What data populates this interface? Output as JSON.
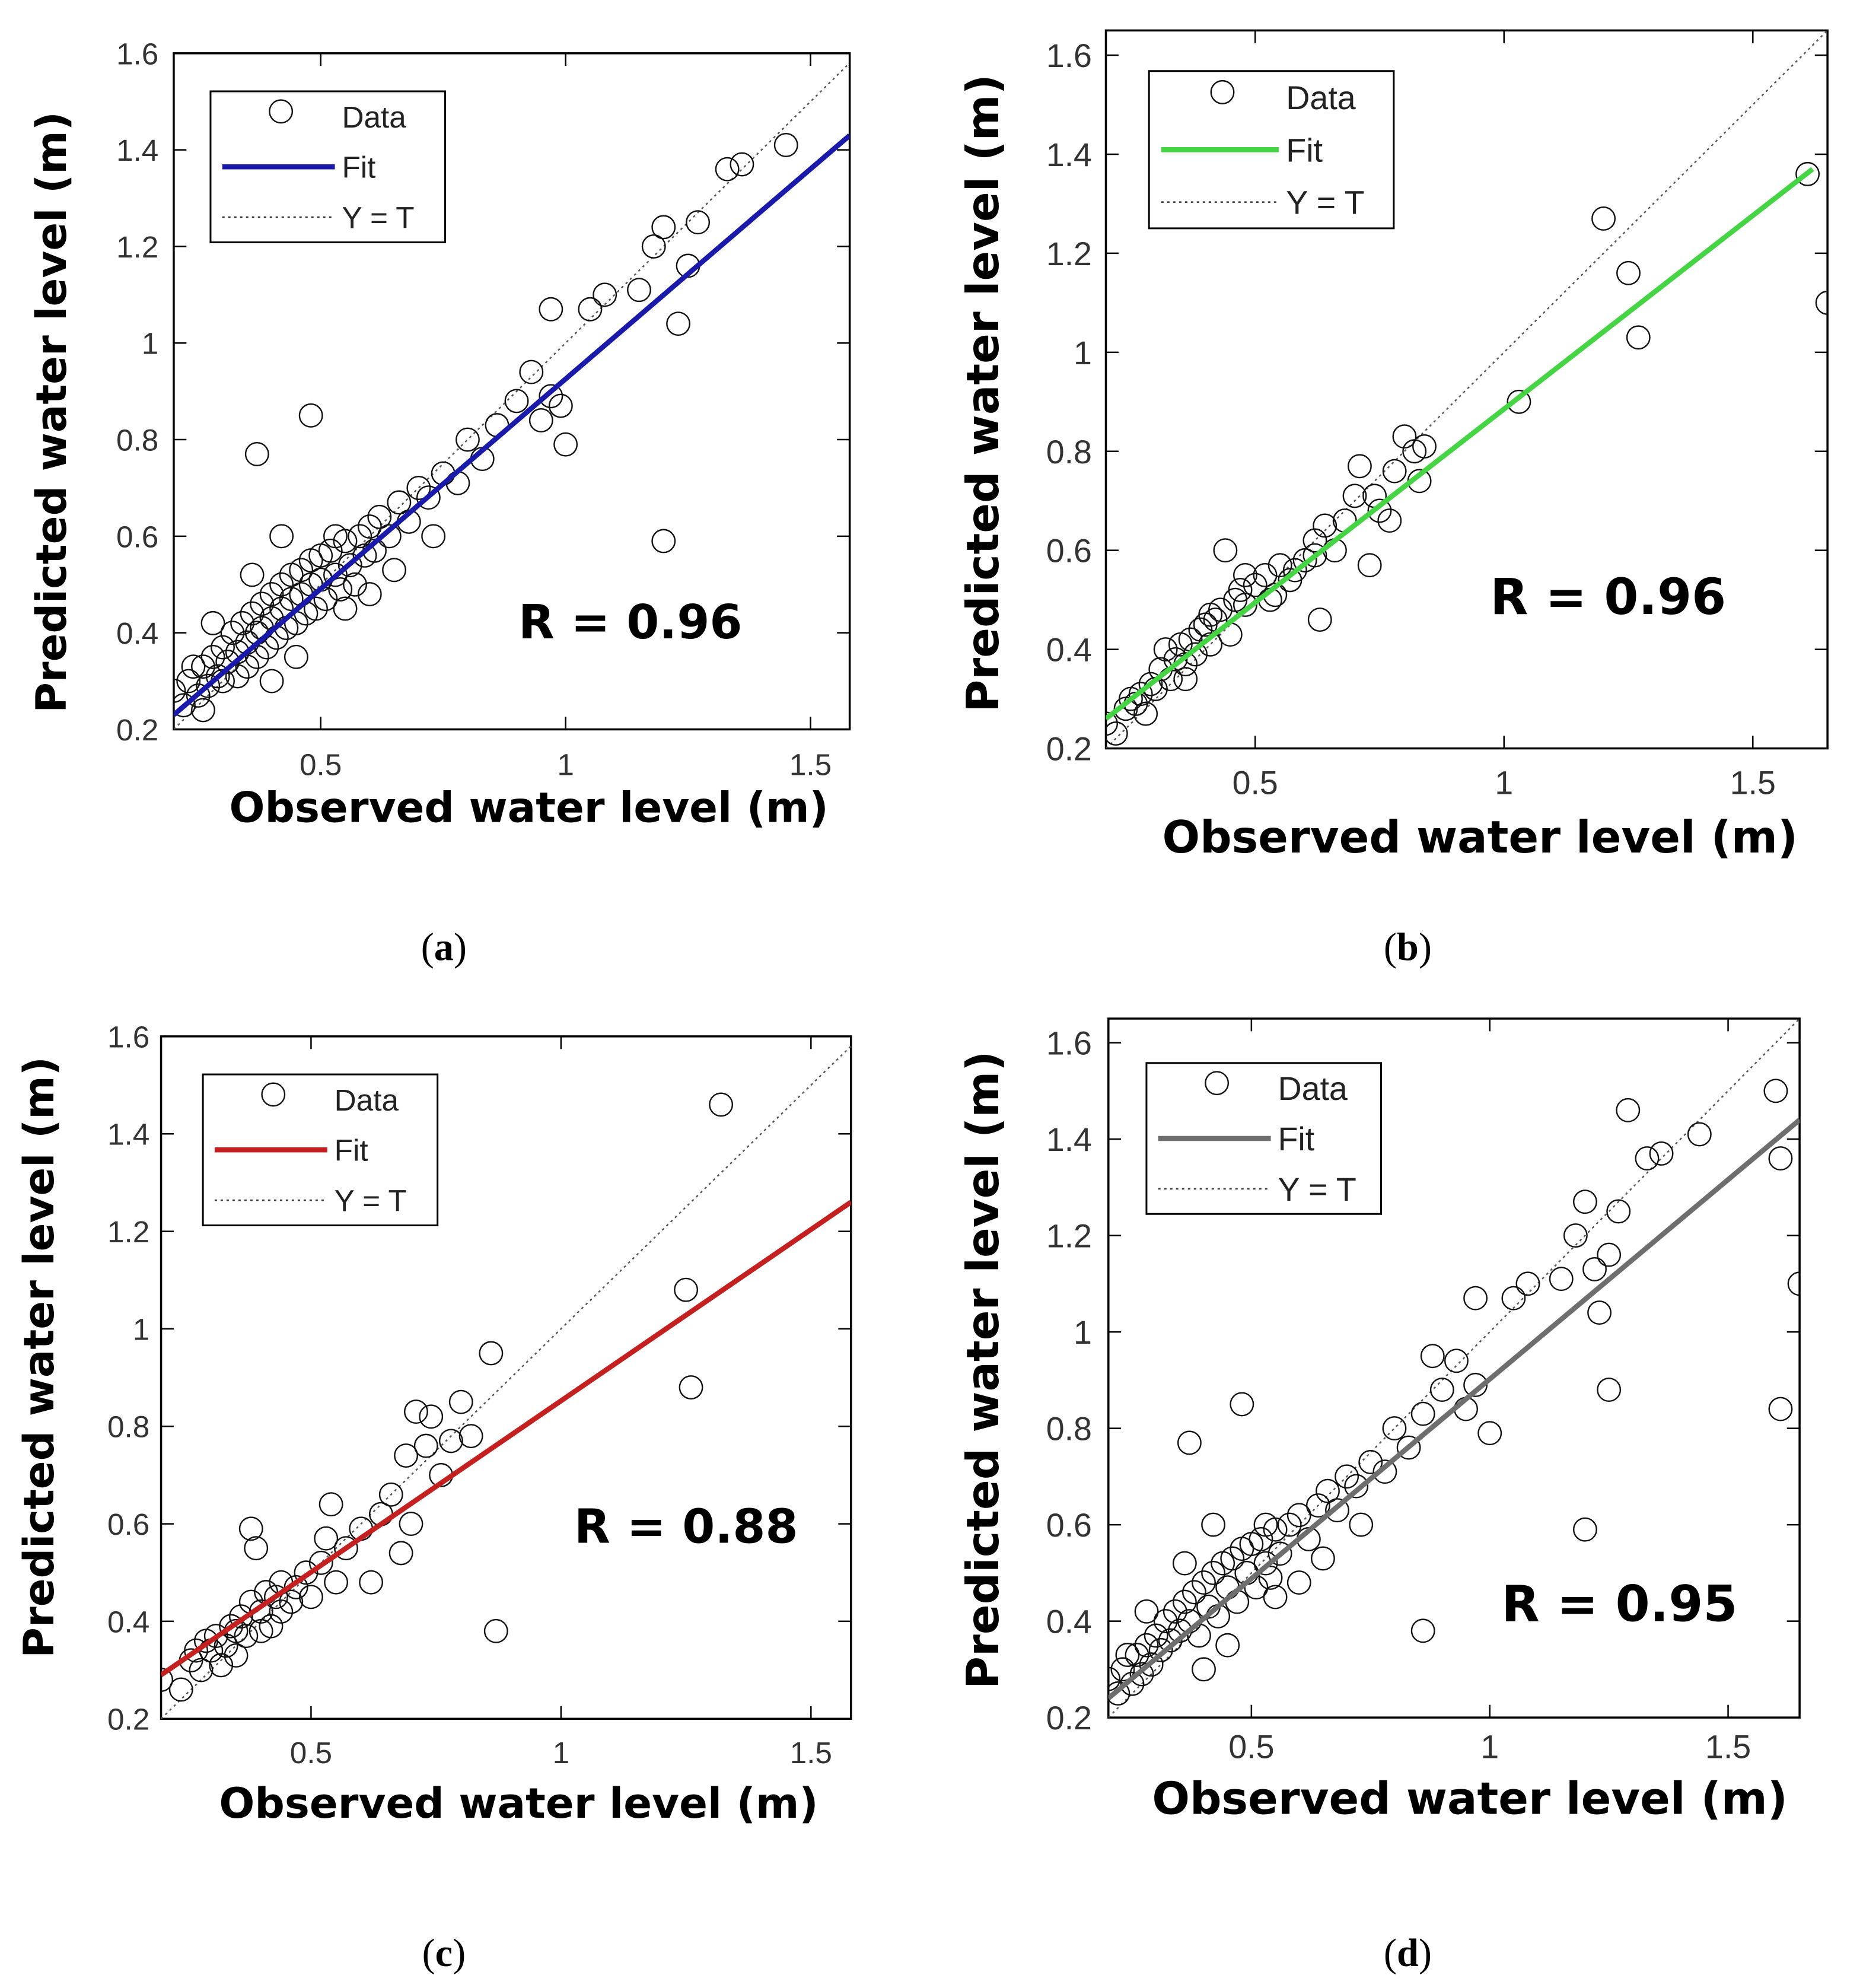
{
  "chart_data": [
    {
      "panel": "a",
      "type": "scatter",
      "caption_letter": "a",
      "xlabel": "Observed water level (m)",
      "ylabel": "Predicted water level (m)",
      "xlim": [
        0.2,
        1.58
      ],
      "ylim": [
        0.2,
        1.6
      ],
      "xticks": [
        0.5,
        1,
        1.5
      ],
      "xtick_labels": [
        "0.5",
        "1",
        "1.5"
      ],
      "yticks": [
        0.2,
        0.4,
        0.6,
        0.8,
        1.0,
        1.2,
        1.4,
        1.6
      ],
      "ytick_labels": [
        "0.2",
        "0.4",
        "0.6",
        "0.8",
        "1",
        "1.2",
        "1.4",
        "1.6"
      ],
      "legend": [
        "Data",
        "Fit",
        "Y = T"
      ],
      "fit_color": "#1a1aaa",
      "fit_line": [
        [
          0.2,
          0.23
        ],
        [
          1.58,
          1.43
        ]
      ],
      "r_label": "R = 0.96",
      "points": [
        [
          0.2,
          0.28
        ],
        [
          0.22,
          0.25
        ],
        [
          0.23,
          0.3
        ],
        [
          0.25,
          0.27
        ],
        [
          0.26,
          0.33
        ],
        [
          0.27,
          0.29
        ],
        [
          0.28,
          0.35
        ],
        [
          0.29,
          0.31
        ],
        [
          0.3,
          0.37
        ],
        [
          0.3,
          0.3
        ],
        [
          0.31,
          0.34
        ],
        [
          0.32,
          0.4
        ],
        [
          0.33,
          0.36
        ],
        [
          0.33,
          0.31
        ],
        [
          0.34,
          0.42
        ],
        [
          0.35,
          0.38
        ],
        [
          0.35,
          0.33
        ],
        [
          0.36,
          0.44
        ],
        [
          0.37,
          0.4
        ],
        [
          0.37,
          0.35
        ],
        [
          0.38,
          0.46
        ],
        [
          0.38,
          0.41
        ],
        [
          0.39,
          0.37
        ],
        [
          0.4,
          0.48
        ],
        [
          0.4,
          0.43
        ],
        [
          0.41,
          0.39
        ],
        [
          0.42,
          0.5
        ],
        [
          0.42,
          0.45
        ],
        [
          0.43,
          0.41
        ],
        [
          0.44,
          0.52
        ],
        [
          0.44,
          0.47
        ],
        [
          0.45,
          0.42
        ],
        [
          0.46,
          0.53
        ],
        [
          0.46,
          0.48
        ],
        [
          0.47,
          0.44
        ],
        [
          0.48,
          0.55
        ],
        [
          0.48,
          0.5
        ],
        [
          0.49,
          0.45
        ],
        [
          0.5,
          0.56
        ],
        [
          0.5,
          0.51
        ],
        [
          0.51,
          0.47
        ],
        [
          0.52,
          0.57
        ],
        [
          0.53,
          0.52
        ],
        [
          0.54,
          0.49
        ],
        [
          0.55,
          0.59
        ],
        [
          0.56,
          0.54
        ],
        [
          0.57,
          0.5
        ],
        [
          0.58,
          0.6
        ],
        [
          0.59,
          0.56
        ],
        [
          0.6,
          0.62
        ],
        [
          0.61,
          0.57
        ],
        [
          0.62,
          0.64
        ],
        [
          0.64,
          0.6
        ],
        [
          0.65,
          0.53
        ],
        [
          0.66,
          0.67
        ],
        [
          0.68,
          0.63
        ],
        [
          0.7,
          0.7
        ],
        [
          0.72,
          0.68
        ],
        [
          0.75,
          0.73
        ],
        [
          0.78,
          0.71
        ],
        [
          0.8,
          0.8
        ],
        [
          0.83,
          0.76
        ],
        [
          0.86,
          0.83
        ],
        [
          0.9,
          0.88
        ],
        [
          0.93,
          0.94
        ],
        [
          0.95,
          0.84
        ],
        [
          0.97,
          0.89
        ],
        [
          0.99,
          0.87
        ],
        [
          1.0,
          0.79
        ],
        [
          0.97,
          1.07
        ],
        [
          1.05,
          1.07
        ],
        [
          1.08,
          1.1
        ],
        [
          1.15,
          1.11
        ],
        [
          1.18,
          1.2
        ],
        [
          1.2,
          1.24
        ],
        [
          1.23,
          1.04
        ],
        [
          1.25,
          1.16
        ],
        [
          1.27,
          1.25
        ],
        [
          1.33,
          1.36
        ],
        [
          1.36,
          1.37
        ],
        [
          1.45,
          1.41
        ],
        [
          1.2,
          0.59
        ],
        [
          0.37,
          0.77
        ],
        [
          0.48,
          0.85
        ],
        [
          0.45,
          0.35
        ],
        [
          0.42,
          0.6
        ],
        [
          0.28,
          0.42
        ],
        [
          0.24,
          0.33
        ],
        [
          0.26,
          0.24
        ],
        [
          0.36,
          0.52
        ],
        [
          0.53,
          0.6
        ],
        [
          0.6,
          0.48
        ],
        [
          0.4,
          0.3
        ],
        [
          0.55,
          0.45
        ],
        [
          0.73,
          0.6
        ]
      ]
    },
    {
      "panel": "b",
      "type": "scatter",
      "caption_letter": "b",
      "xlabel": "Observed water level (m)",
      "ylabel": "Predicted water level (m)",
      "xlim": [
        0.2,
        1.65
      ],
      "ylim": [
        0.2,
        1.65
      ],
      "xticks": [
        0.5,
        1,
        1.5
      ],
      "xtick_labels": [
        "0.5",
        "1",
        "1.5"
      ],
      "yticks": [
        0.2,
        0.4,
        0.6,
        0.8,
        1.0,
        1.2,
        1.4,
        1.6
      ],
      "ytick_labels": [
        "0.2",
        "0.4",
        "0.6",
        "0.8",
        "1",
        "1.2",
        "1.4",
        "1.6"
      ],
      "legend": [
        "Data",
        "Fit",
        "Y = T"
      ],
      "fit_color": "#44d444",
      "fit_line": [
        [
          0.2,
          0.26
        ],
        [
          1.62,
          1.37
        ]
      ],
      "r_label": "R = 0.96",
      "points": [
        [
          0.2,
          0.25
        ],
        [
          0.22,
          0.23
        ],
        [
          0.24,
          0.28
        ],
        [
          0.25,
          0.3
        ],
        [
          0.27,
          0.31
        ],
        [
          0.28,
          0.27
        ],
        [
          0.3,
          0.32
        ],
        [
          0.31,
          0.36
        ],
        [
          0.32,
          0.4
        ],
        [
          0.33,
          0.34
        ],
        [
          0.34,
          0.38
        ],
        [
          0.35,
          0.41
        ],
        [
          0.36,
          0.37
        ],
        [
          0.37,
          0.42
        ],
        [
          0.38,
          0.39
        ],
        [
          0.39,
          0.44
        ],
        [
          0.4,
          0.45
        ],
        [
          0.41,
          0.41
        ],
        [
          0.42,
          0.46
        ],
        [
          0.43,
          0.48
        ],
        [
          0.44,
          0.6
        ],
        [
          0.45,
          0.43
        ],
        [
          0.46,
          0.5
        ],
        [
          0.47,
          0.52
        ],
        [
          0.48,
          0.49
        ],
        [
          0.5,
          0.53
        ],
        [
          0.52,
          0.55
        ],
        [
          0.54,
          0.51
        ],
        [
          0.55,
          0.57
        ],
        [
          0.57,
          0.54
        ],
        [
          0.58,
          0.56
        ],
        [
          0.6,
          0.58
        ],
        [
          0.62,
          0.62
        ],
        [
          0.63,
          0.46
        ],
        [
          0.64,
          0.65
        ],
        [
          0.66,
          0.6
        ],
        [
          0.68,
          0.66
        ],
        [
          0.7,
          0.71
        ],
        [
          0.71,
          0.77
        ],
        [
          0.73,
          0.57
        ],
        [
          0.75,
          0.68
        ],
        [
          0.77,
          0.66
        ],
        [
          0.78,
          0.76
        ],
        [
          0.8,
          0.83
        ],
        [
          0.82,
          0.8
        ],
        [
          0.83,
          0.74
        ],
        [
          0.84,
          0.81
        ],
        [
          1.03,
          0.9
        ],
        [
          1.2,
          1.27
        ],
        [
          1.25,
          1.16
        ],
        [
          1.27,
          1.03
        ],
        [
          1.61,
          1.36
        ],
        [
          1.65,
          1.1
        ],
        [
          0.36,
          0.34
        ],
        [
          0.29,
          0.33
        ],
        [
          0.53,
          0.5
        ],
        [
          0.41,
          0.47
        ],
        [
          0.62,
          0.59
        ],
        [
          0.26,
          0.29
        ],
        [
          0.48,
          0.55
        ],
        [
          0.74,
          0.71
        ]
      ]
    },
    {
      "panel": "c",
      "type": "scatter",
      "caption_letter": "c",
      "xlabel": "Observed water level (m)",
      "ylabel": "Predicted water level (m)",
      "xlim": [
        0.2,
        1.58
      ],
      "ylim": [
        0.2,
        1.6
      ],
      "xticks": [
        0.5,
        1,
        1.5
      ],
      "xtick_labels": [
        "0.5",
        "1",
        "1.5"
      ],
      "yticks": [
        0.2,
        0.4,
        0.6,
        0.8,
        1.0,
        1.2,
        1.4,
        1.6
      ],
      "ytick_labels": [
        "0.2",
        "0.4",
        "0.6",
        "0.8",
        "1",
        "1.2",
        "1.4",
        "1.6"
      ],
      "legend": [
        "Data",
        "Fit",
        "Y = T"
      ],
      "fit_color": "#c42020",
      "fit_line": [
        [
          0.2,
          0.29
        ],
        [
          1.58,
          1.26
        ]
      ],
      "r_label": "R = 0.88",
      "points": [
        [
          0.2,
          0.28
        ],
        [
          0.24,
          0.26
        ],
        [
          0.26,
          0.32
        ],
        [
          0.28,
          0.3
        ],
        [
          0.3,
          0.34
        ],
        [
          0.31,
          0.37
        ],
        [
          0.32,
          0.31
        ],
        [
          0.33,
          0.35
        ],
        [
          0.34,
          0.39
        ],
        [
          0.35,
          0.33
        ],
        [
          0.36,
          0.41
        ],
        [
          0.37,
          0.37
        ],
        [
          0.38,
          0.44
        ],
        [
          0.38,
          0.59
        ],
        [
          0.39,
          0.55
        ],
        [
          0.4,
          0.42
        ],
        [
          0.41,
          0.46
        ],
        [
          0.42,
          0.39
        ],
        [
          0.43,
          0.45
        ],
        [
          0.44,
          0.48
        ],
        [
          0.46,
          0.44
        ],
        [
          0.47,
          0.47
        ],
        [
          0.49,
          0.5
        ],
        [
          0.5,
          0.45
        ],
        [
          0.52,
          0.52
        ],
        [
          0.53,
          0.57
        ],
        [
          0.54,
          0.64
        ],
        [
          0.55,
          0.48
        ],
        [
          0.57,
          0.55
        ],
        [
          0.6,
          0.59
        ],
        [
          0.62,
          0.48
        ],
        [
          0.64,
          0.62
        ],
        [
          0.66,
          0.66
        ],
        [
          0.68,
          0.54
        ],
        [
          0.69,
          0.74
        ],
        [
          0.7,
          0.6
        ],
        [
          0.71,
          0.83
        ],
        [
          0.73,
          0.76
        ],
        [
          0.74,
          0.82
        ],
        [
          0.76,
          0.7
        ],
        [
          0.78,
          0.77
        ],
        [
          0.8,
          0.85
        ],
        [
          0.82,
          0.78
        ],
        [
          0.86,
          0.95
        ],
        [
          0.87,
          0.38
        ],
        [
          1.25,
          1.08
        ],
        [
          1.26,
          0.88
        ],
        [
          1.32,
          1.46
        ],
        [
          0.29,
          0.36
        ],
        [
          0.35,
          0.38
        ],
        [
          0.44,
          0.42
        ],
        [
          0.27,
          0.34
        ],
        [
          0.4,
          0.38
        ]
      ]
    },
    {
      "panel": "d",
      "type": "scatter",
      "caption_letter": "d",
      "xlabel": "Observed water level (m)",
      "ylabel": "Predicted water level (m)",
      "xlim": [
        0.2,
        1.65
      ],
      "ylim": [
        0.2,
        1.65
      ],
      "xticks": [
        0.5,
        1,
        1.5
      ],
      "xtick_labels": [
        "0.5",
        "1",
        "1.5"
      ],
      "yticks": [
        0.2,
        0.4,
        0.6,
        0.8,
        1.0,
        1.2,
        1.4,
        1.6
      ],
      "ytick_labels": [
        "0.2",
        "0.4",
        "0.6",
        "0.8",
        "1",
        "1.2",
        "1.4",
        "1.6"
      ],
      "legend": [
        "Data",
        "Fit",
        "Y = T"
      ],
      "fit_color": "#6e6e6e",
      "fit_line": [
        [
          0.2,
          0.24
        ],
        [
          1.65,
          1.44
        ]
      ],
      "r_label": "R = 0.95",
      "points": [
        [
          0.2,
          0.28
        ],
        [
          0.22,
          0.25
        ],
        [
          0.23,
          0.3
        ],
        [
          0.25,
          0.27
        ],
        [
          0.26,
          0.33
        ],
        [
          0.27,
          0.29
        ],
        [
          0.28,
          0.35
        ],
        [
          0.29,
          0.31
        ],
        [
          0.3,
          0.37
        ],
        [
          0.31,
          0.34
        ],
        [
          0.32,
          0.4
        ],
        [
          0.33,
          0.36
        ],
        [
          0.34,
          0.42
        ],
        [
          0.35,
          0.38
        ],
        [
          0.36,
          0.44
        ],
        [
          0.37,
          0.4
        ],
        [
          0.38,
          0.46
        ],
        [
          0.39,
          0.37
        ],
        [
          0.4,
          0.48
        ],
        [
          0.41,
          0.43
        ],
        [
          0.42,
          0.5
        ],
        [
          0.43,
          0.41
        ],
        [
          0.44,
          0.52
        ],
        [
          0.45,
          0.47
        ],
        [
          0.46,
          0.53
        ],
        [
          0.47,
          0.44
        ],
        [
          0.48,
          0.55
        ],
        [
          0.49,
          0.5
        ],
        [
          0.5,
          0.56
        ],
        [
          0.51,
          0.47
        ],
        [
          0.52,
          0.57
        ],
        [
          0.53,
          0.52
        ],
        [
          0.54,
          0.49
        ],
        [
          0.55,
          0.59
        ],
        [
          0.56,
          0.54
        ],
        [
          0.58,
          0.6
        ],
        [
          0.6,
          0.62
        ],
        [
          0.62,
          0.57
        ],
        [
          0.64,
          0.64
        ],
        [
          0.65,
          0.53
        ],
        [
          0.66,
          0.67
        ],
        [
          0.68,
          0.63
        ],
        [
          0.7,
          0.7
        ],
        [
          0.72,
          0.68
        ],
        [
          0.75,
          0.73
        ],
        [
          0.78,
          0.71
        ],
        [
          0.8,
          0.8
        ],
        [
          0.83,
          0.76
        ],
        [
          0.86,
          0.83
        ],
        [
          0.88,
          0.95
        ],
        [
          0.9,
          0.88
        ],
        [
          0.93,
          0.94
        ],
        [
          0.95,
          0.84
        ],
        [
          0.97,
          0.89
        ],
        [
          1.0,
          0.79
        ],
        [
          0.97,
          1.07
        ],
        [
          1.05,
          1.07
        ],
        [
          1.08,
          1.1
        ],
        [
          1.15,
          1.11
        ],
        [
          1.18,
          1.2
        ],
        [
          1.2,
          1.27
        ],
        [
          1.22,
          1.13
        ],
        [
          1.23,
          1.04
        ],
        [
          1.25,
          1.16
        ],
        [
          1.27,
          1.25
        ],
        [
          1.29,
          1.46
        ],
        [
          1.33,
          1.36
        ],
        [
          1.36,
          1.37
        ],
        [
          1.44,
          1.41
        ],
        [
          1.6,
          1.5
        ],
        [
          1.61,
          1.36
        ],
        [
          1.61,
          0.84
        ],
        [
          1.65,
          1.1
        ],
        [
          1.25,
          0.88
        ],
        [
          1.2,
          0.59
        ],
        [
          0.86,
          0.38
        ],
        [
          0.37,
          0.77
        ],
        [
          0.48,
          0.85
        ],
        [
          0.45,
          0.35
        ],
        [
          0.42,
          0.6
        ],
        [
          0.28,
          0.42
        ],
        [
          0.24,
          0.33
        ],
        [
          0.36,
          0.52
        ],
        [
          0.53,
          0.6
        ],
        [
          0.6,
          0.48
        ],
        [
          0.4,
          0.3
        ],
        [
          0.55,
          0.45
        ],
        [
          0.73,
          0.6
        ]
      ]
    }
  ]
}
